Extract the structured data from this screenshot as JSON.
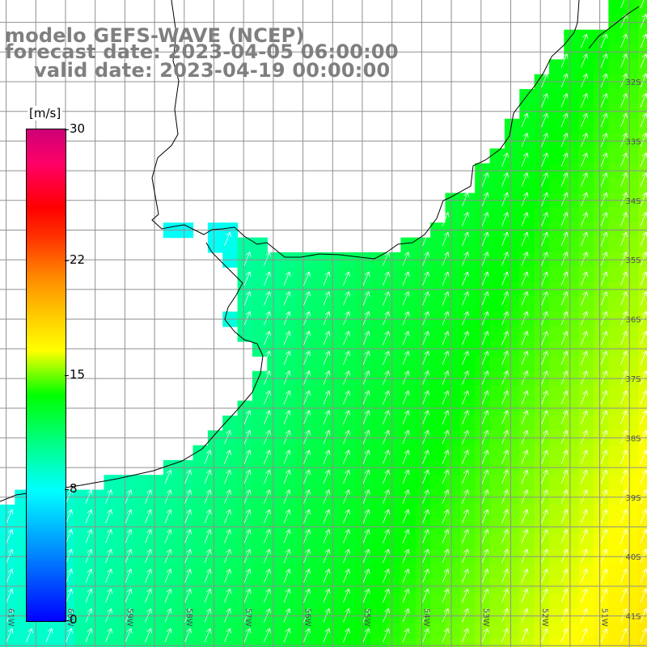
{
  "header": {
    "line1": "modelo GEFS-WAVE (NCEP)",
    "line2": "forecast date: 2023-04-05 06:00:00",
    "line3": "valid date: 2023-04-19 00:00:00"
  },
  "colorbar": {
    "unit": "[m/s]",
    "min": 0,
    "max": 30,
    "ticks": [
      "30",
      "22",
      "15",
      "8",
      "0"
    ],
    "tick_values": [
      30,
      22,
      15,
      8,
      0
    ],
    "colors": [
      "#0000ff",
      "#00ffff",
      "#00ff00",
      "#ffff00",
      "#ff0000",
      "#cc0077"
    ]
  },
  "map": {
    "lat_labels": [
      "32S",
      "33S",
      "34S",
      "35S",
      "36S",
      "37S",
      "38S",
      "39S",
      "40S",
      "41S"
    ],
    "lon_labels": [
      "61W",
      "60W",
      "59W",
      "58W",
      "57W",
      "56W",
      "55W",
      "54W",
      "53W",
      "52W",
      "51W"
    ],
    "lon_range": [
      -61.5,
      -50.7
    ],
    "lat_range": [
      -41.2,
      -30.6
    ],
    "land_color": "#ffffff",
    "coast_color": "#000000",
    "grid_color": "#909090",
    "wind_direction": "NNE"
  }
}
